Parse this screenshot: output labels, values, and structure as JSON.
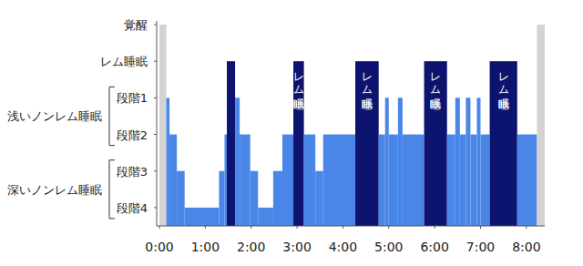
{
  "chart_data": {
    "type": "hypnogram",
    "bins": [
      0,
      0.15,
      0.22,
      0.38,
      0.55,
      1.3,
      1.42,
      1.47,
      1.65,
      1.75,
      1.98,
      2.15,
      2.48,
      2.68,
      2.92,
      3.15,
      3.4,
      3.57,
      4.27,
      4.78,
      4.92,
      5.0,
      5.2,
      5.3,
      5.77,
      6.27,
      6.45,
      6.55,
      6.68,
      6.78,
      6.92,
      7.0,
      7.2,
      7.8,
      8.23,
      8.4
    ],
    "values": [
      6,
      4,
      3,
      2,
      1,
      2,
      3,
      5,
      4,
      3,
      2,
      1,
      2,
      3,
      5,
      3,
      2,
      3,
      5,
      3,
      4,
      3,
      4,
      3,
      5,
      3,
      4,
      3,
      4,
      3,
      4,
      3,
      5,
      3,
      6
    ],
    "colors": [
      "#d3d3d3",
      "#4a86e8",
      "#4a86e8",
      "#4a86e8",
      "#4a86e8",
      "#4a86e8",
      "#4a86e8",
      "#0d1470",
      "#4a86e8",
      "#4a86e8",
      "#4a86e8",
      "#4a86e8",
      "#4a86e8",
      "#4a86e8",
      "#0d1470",
      "#4a86e8",
      "#4a86e8",
      "#4a86e8",
      "#0d1470",
      "#4a86e8",
      "#4a86e8",
      "#4a86e8",
      "#4a86e8",
      "#4a86e8",
      "#0d1470",
      "#4a86e8",
      "#4a86e8",
      "#4a86e8",
      "#4a86e8",
      "#4a86e8",
      "#4a86e8",
      "#4a86e8",
      "#0d1470",
      "#4a86e8",
      "#d3d3d3"
    ],
    "xlim": [
      0,
      8.4
    ],
    "xticks": [
      {
        "value": 0,
        "label": "0:00"
      },
      {
        "value": 1,
        "label": "1:00"
      },
      {
        "value": 2,
        "label": "2:00"
      },
      {
        "value": 3,
        "label": "3:00"
      },
      {
        "value": 4,
        "label": "4:00"
      },
      {
        "value": 5,
        "label": "5:00"
      },
      {
        "value": 6,
        "label": "6:00"
      },
      {
        "value": 7,
        "label": "7:00"
      },
      {
        "value": 8,
        "label": "8:00"
      }
    ],
    "ylim": [
      0.5,
      6.1
    ],
    "yticks": [
      {
        "value": 6,
        "label": "覚醒"
      },
      {
        "value": 5,
        "label": "レム睡眠"
      },
      {
        "value": 4,
        "label": "段階1"
      },
      {
        "value": 3,
        "label": "段階2"
      },
      {
        "value": 2,
        "label": "段階3"
      },
      {
        "value": 1,
        "label": "段階4"
      }
    ],
    "y_groups": [
      {
        "label": "浅いノンレム睡眠",
        "from": 3,
        "to": 4
      },
      {
        "label": "深いノンレム睡眠",
        "from": 1,
        "to": 2
      }
    ],
    "annotations": [
      {
        "text": "レム睡眠",
        "x": 3.03
      },
      {
        "text": "レム睡眠",
        "x": 4.52
      },
      {
        "text": "レム睡眠",
        "x": 6.02
      },
      {
        "text": "レム睡眠",
        "x": 7.5
      }
    ],
    "grid": false
  }
}
